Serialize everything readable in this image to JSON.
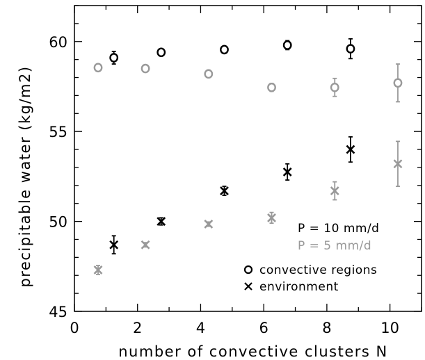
{
  "chart_data": {
    "type": "scatter",
    "xlabel": "number of convective clusters N",
    "ylabel": "precipitable water (kg/m2)",
    "xlim": [
      0,
      11
    ],
    "ylim": [
      45,
      62
    ],
    "x_ticks": [
      0,
      2,
      4,
      6,
      8,
      10
    ],
    "y_ticks": [
      45,
      50,
      55,
      60
    ],
    "grid": false,
    "legend_position": "bottom-right",
    "legend": {
      "p10_label": "P = 10 mm/d",
      "p5_label": "P = 5 mm/d",
      "convective_label": "convective regions",
      "environment_label": "environment"
    },
    "colors": {
      "p10": "#000000",
      "p5": "#999999"
    },
    "series": [
      {
        "group": "p10",
        "marker": "circle",
        "x": [
          1.25,
          2.75,
          4.75,
          6.75,
          8.75
        ],
        "y": [
          59.1,
          59.4,
          59.55,
          59.8,
          59.6
        ],
        "err": [
          0.35,
          0.12,
          0.12,
          0.25,
          0.55
        ]
      },
      {
        "group": "p5",
        "marker": "circle",
        "x": [
          0.75,
          2.25,
          4.25,
          6.25,
          8.25,
          10.25
        ],
        "y": [
          58.55,
          58.5,
          58.2,
          57.45,
          57.45,
          57.7
        ],
        "err": [
          0.12,
          0.12,
          0.12,
          0.22,
          0.5,
          1.05
        ]
      },
      {
        "group": "p10",
        "marker": "cross",
        "x": [
          1.25,
          2.75,
          4.75,
          6.75,
          8.75
        ],
        "y": [
          48.7,
          50.0,
          51.7,
          52.75,
          54.0
        ],
        "err": [
          0.5,
          0.2,
          0.25,
          0.45,
          0.7
        ]
      },
      {
        "group": "p5",
        "marker": "cross",
        "x": [
          0.75,
          2.25,
          4.25,
          6.25,
          8.25,
          10.25
        ],
        "y": [
          47.3,
          48.7,
          49.85,
          50.2,
          51.7,
          53.2
        ],
        "err": [
          0.25,
          0.12,
          0.12,
          0.3,
          0.5,
          1.25
        ]
      }
    ]
  }
}
